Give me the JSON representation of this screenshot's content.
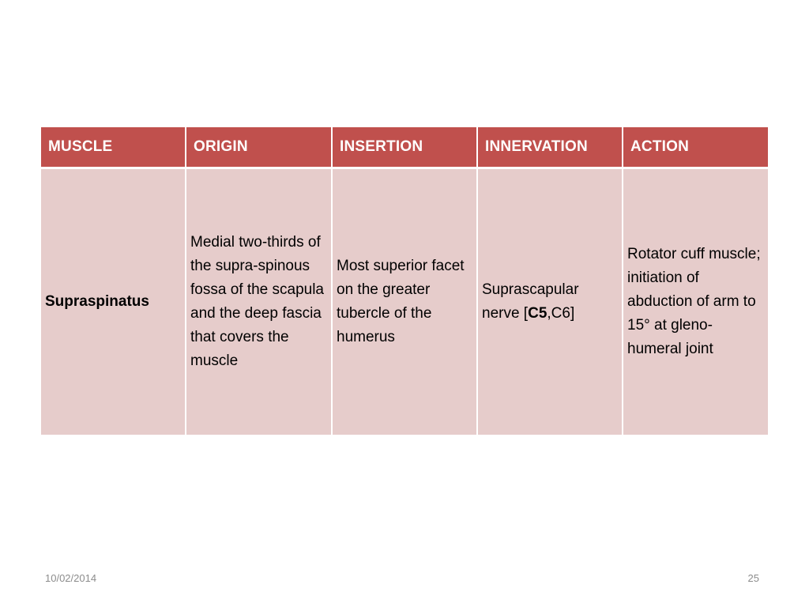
{
  "table": {
    "headers": [
      "MUSCLE",
      "ORIGIN",
      "INSERTION",
      "INNERVATION",
      "ACTION"
    ],
    "row": {
      "muscle": "Supraspinatus",
      "origin": "Medial two-thirds of the supra-spinous fossa of the scapula and the deep fascia that covers the muscle",
      "insertion": "Most superior facet on the greater tubercle of the humerus",
      "innervation_prefix": "Suprascapular nerve [",
      "innervation_bold": "C5",
      "innervation_suffix": ",C6]",
      "action": "Rotator cuff muscle; initiation of abduction of arm to 15° at gleno-humeral joint"
    }
  },
  "footer": {
    "date": "10/02/2014",
    "page_number": "25"
  },
  "colors": {
    "header_bg": "#c0504d",
    "cell_bg": "#e6cccb"
  }
}
